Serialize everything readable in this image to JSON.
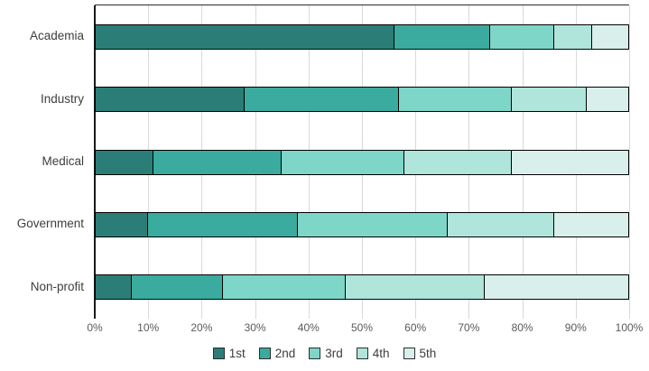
{
  "chart_data": {
    "type": "bar",
    "orientation": "horizontal",
    "stacked": true,
    "title": "",
    "xlabel": "",
    "ylabel": "",
    "xlim": [
      0,
      100
    ],
    "grid": "vertical",
    "legend_position": "bottom",
    "x_tick_labels": [
      "0%",
      "10%",
      "20%",
      "30%",
      "40%",
      "50%",
      "60%",
      "70%",
      "80%",
      "90%",
      "100%"
    ],
    "categories": [
      "Academia",
      "Industry",
      "Medical",
      "Government",
      "Non-profit"
    ],
    "series": [
      {
        "name": "1st",
        "color": "#2b7e77",
        "values": [
          56,
          28,
          11,
          10,
          7
        ]
      },
      {
        "name": "2nd",
        "color": "#3aab9e",
        "values": [
          18,
          29,
          24,
          28,
          17
        ]
      },
      {
        "name": "3rd",
        "color": "#7ed6c9",
        "values": [
          12,
          21,
          23,
          28,
          23
        ]
      },
      {
        "name": "4th",
        "color": "#afe5db",
        "values": [
          7,
          14,
          20,
          20,
          26
        ]
      },
      {
        "name": "5th",
        "color": "#d8efeb",
        "values": [
          7,
          8,
          22,
          14,
          27
        ]
      }
    ]
  },
  "style": {
    "background": "#ffffff",
    "segment_border_color": "#000000",
    "axis_line_color": "#1a1a1a",
    "plot_top_border_color": "#2b2b2b",
    "gridline_color": "#d9d9d9",
    "category_label_color": "#3d3d3d",
    "tick_label_color": "#5a5a5a",
    "legend_text_color": "#3d3d3d",
    "legend_swatch_border_color": "#2d2d2d"
  }
}
